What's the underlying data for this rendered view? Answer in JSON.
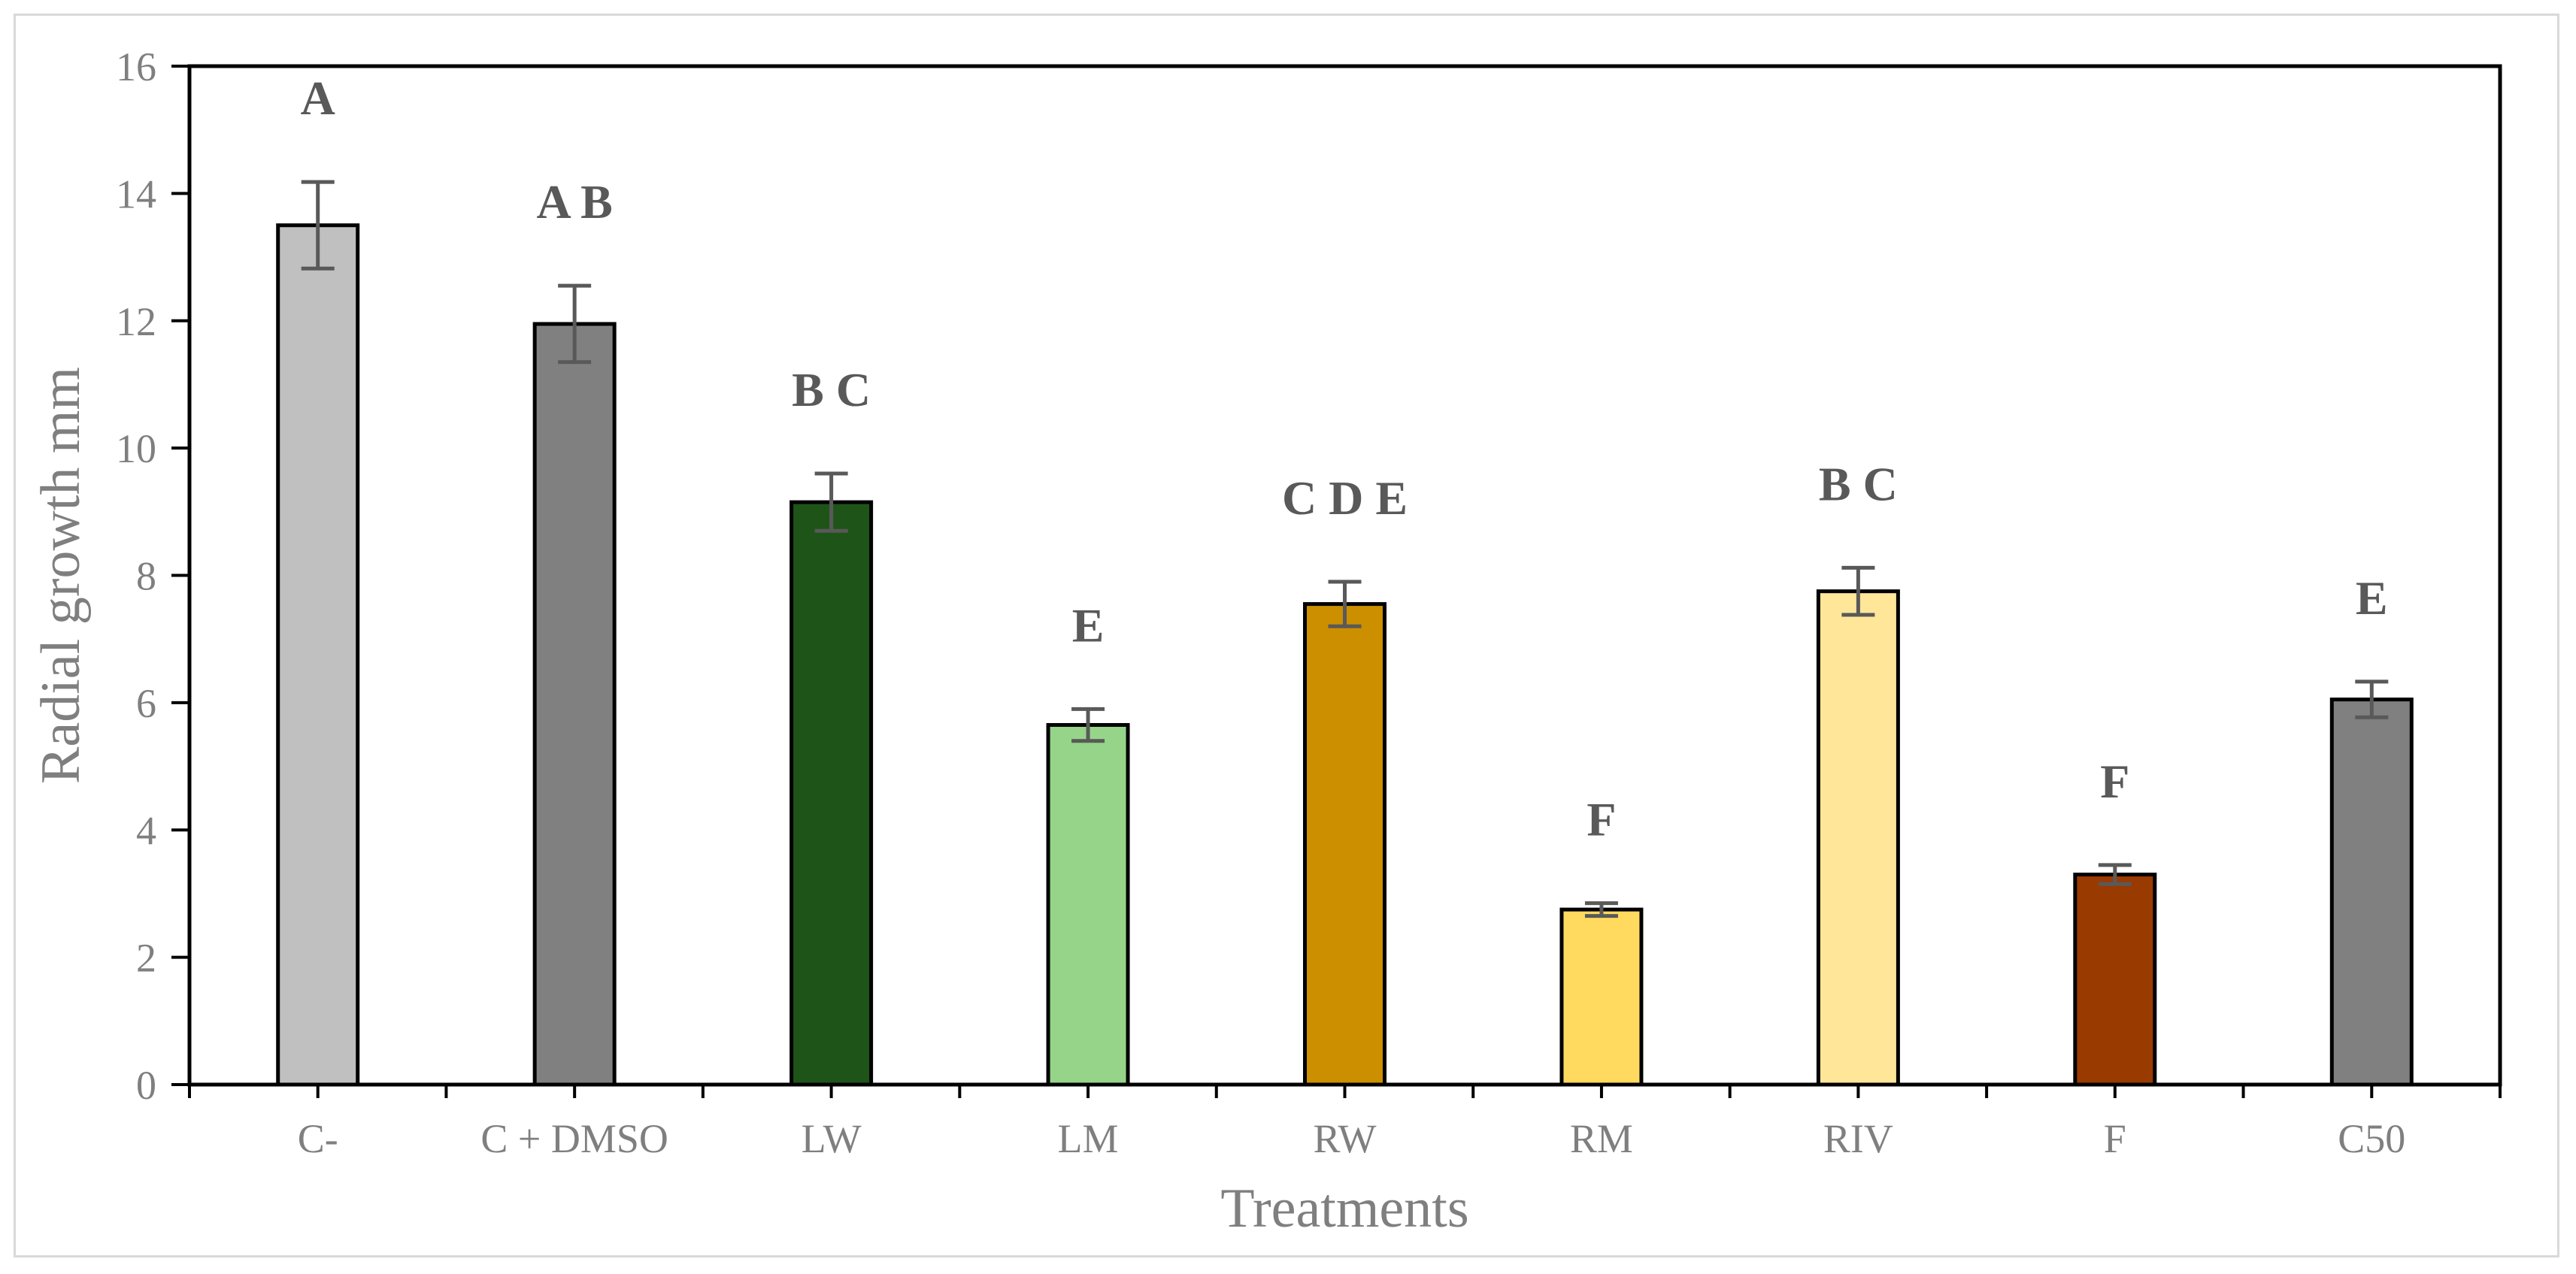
{
  "chart_data": {
    "type": "bar",
    "title": "",
    "xlabel": "Treatments",
    "ylabel": "Radial growth mm",
    "ylim": [
      0,
      16
    ],
    "yticks": [
      0,
      2,
      4,
      6,
      8,
      10,
      12,
      14,
      16
    ],
    "grid": false,
    "categories": [
      "C-",
      "C + DMSO",
      "LW",
      "LM",
      "RW",
      "RM",
      "RIV",
      "F",
      "C50"
    ],
    "values": [
      13.5,
      11.95,
      9.15,
      5.65,
      7.55,
      2.75,
      7.75,
      3.3,
      6.05
    ],
    "errors": [
      0.68,
      0.6,
      0.45,
      0.25,
      0.35,
      0.1,
      0.37,
      0.15,
      0.28
    ],
    "significance_letters": [
      "A",
      "A B",
      "B C",
      "E",
      "C D E",
      "F",
      "B C",
      "F",
      "E"
    ],
    "bar_colors": [
      "#c0c0c0",
      "#808080",
      "#1f5419",
      "#96d48a",
      "#cc8f00",
      "#ffda5e",
      "#ffe699",
      "#993a00",
      "#808080"
    ]
  }
}
